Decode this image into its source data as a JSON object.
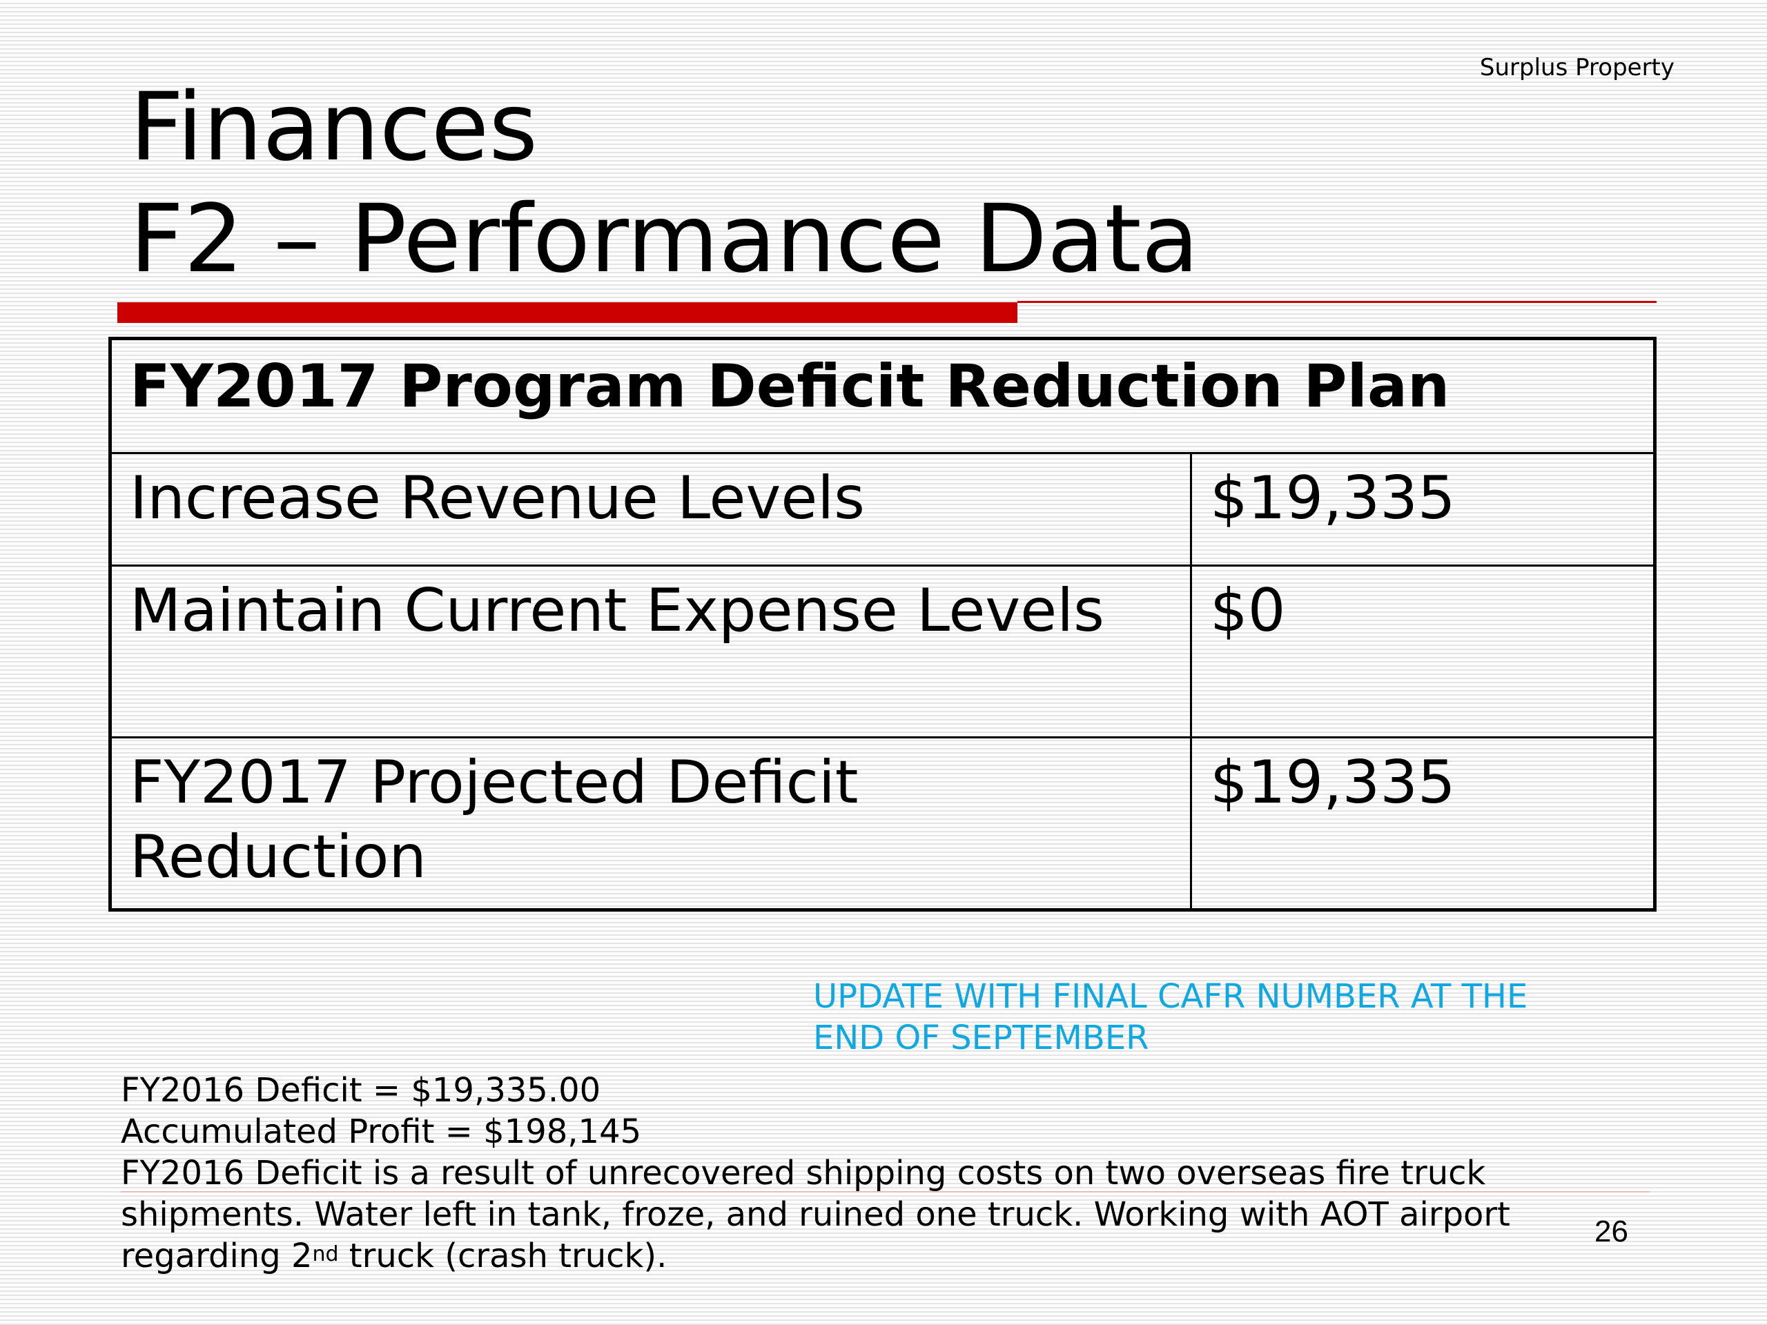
{
  "header": {
    "tag": "Surplus Property"
  },
  "title": {
    "line1": "Finances",
    "line2": "F2 – Performance Data"
  },
  "table": {
    "heading": "FY2017 Program Deficit Reduction Plan",
    "rows": [
      {
        "label": "Increase Revenue Levels",
        "value": "$19,335"
      },
      {
        "label": "Maintain Current Expense Levels",
        "value": "$0"
      },
      {
        "label": "FY2017 Projected Deficit Reduction",
        "value": "$19,335"
      }
    ]
  },
  "note": {
    "line1": "UPDATE WITH FINAL CAFR NUMBER AT THE",
    "line2": "END OF SEPTEMBER"
  },
  "footer_notes": {
    "deficit": "FY2016 Deficit  = $19,335.00",
    "profit": "Accumulated Profit = $198,145",
    "explanation_line1": "FY2016 Deficit is a result of unrecovered shipping costs on two overseas fire truck",
    "explanation_line2": "shipments.  Water left in tank, froze, and ruined one truck. Working with AOT airport",
    "explanation_line3_pre": "regarding 2",
    "explanation_line3_sup": "nd",
    "explanation_line3_post": " truck (crash truck)."
  },
  "page_number": "26",
  "colors": {
    "accent_red": "#cc0000",
    "note_blue": "#0fa8e0"
  }
}
